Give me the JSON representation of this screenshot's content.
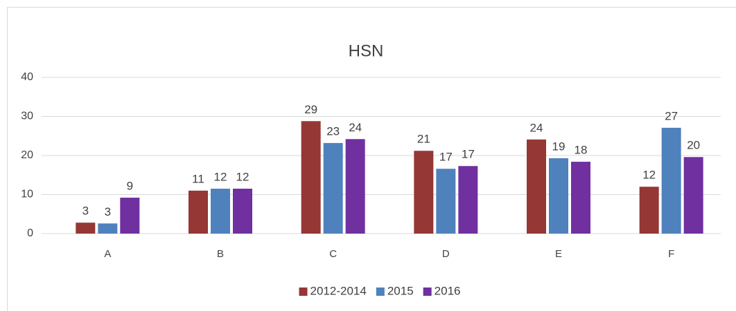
{
  "chart_data": {
    "type": "bar",
    "title": "HSN",
    "categories": [
      "A",
      "B",
      "C",
      "D",
      "E",
      "F"
    ],
    "series": [
      {
        "name": "2012-2014",
        "color": "#953735",
        "values": [
          2.8,
          11.0,
          28.8,
          21.2,
          24.1,
          12.0
        ],
        "value_labels": [
          "3",
          "11",
          "29",
          "21",
          "24",
          "12"
        ]
      },
      {
        "name": "2015",
        "color": "#4f81bd",
        "values": [
          2.6,
          11.5,
          23.2,
          16.6,
          19.3,
          27.1
        ],
        "value_labels": [
          "3",
          "12",
          "23",
          "17",
          "19",
          "27"
        ]
      },
      {
        "name": "2016",
        "color": "#7030a0",
        "values": [
          9.2,
          11.5,
          24.2,
          17.3,
          18.4,
          19.6
        ],
        "value_labels": [
          "9",
          "12",
          "24",
          "17",
          "18",
          "20"
        ]
      }
    ],
    "ylim": [
      0,
      40
    ],
    "yticks": [
      0,
      10,
      20,
      30,
      40
    ],
    "grid": true,
    "legend": "bottom"
  }
}
